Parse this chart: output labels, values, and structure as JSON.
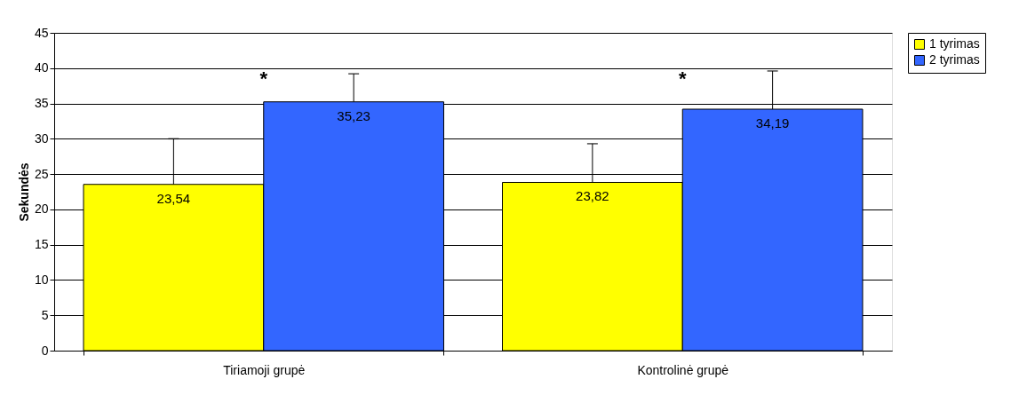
{
  "chart_data": {
    "type": "bar",
    "ylabel": "Sekundės",
    "categories": [
      "Tiriamoji grupė",
      "Kontrolinė grupė"
    ],
    "series": [
      {
        "name": "1 tyrimas",
        "color": "#ffff00",
        "values": [
          23.54,
          23.82
        ],
        "value_labels": [
          "23,54",
          "23,82"
        ],
        "errors": [
          [
            23.54,
            30.0
          ],
          [
            23.82,
            29.3
          ]
        ]
      },
      {
        "name": "2 tyrimas",
        "color": "#3366ff",
        "values": [
          35.23,
          34.19
        ],
        "value_labels": [
          "35,23",
          "34,19"
        ],
        "errors": [
          [
            35.23,
            39.2
          ],
          [
            34.19,
            39.6
          ]
        ]
      }
    ],
    "annotations": [
      "*",
      "*"
    ],
    "ylim": [
      0,
      45
    ],
    "yticks": [
      0,
      5,
      10,
      15,
      20,
      25,
      30,
      35,
      40,
      45
    ],
    "grid": "y",
    "legend": "right"
  }
}
